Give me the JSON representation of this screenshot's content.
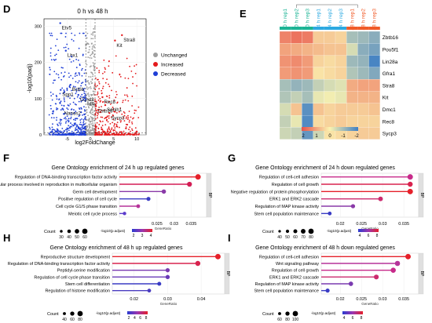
{
  "chart_data": [
    {
      "panel": "D",
      "type": "scatter",
      "title": "0 h vs 48 h",
      "xlabel": "log2FoldChange",
      "ylabel": "-log10(padj)",
      "xticks": [
        "-5",
        "0",
        "5",
        "10"
      ],
      "yticks": [
        "0",
        "100",
        "200",
        "300"
      ],
      "xlim": [
        -10,
        12
      ],
      "ylim": [
        0,
        320
      ],
      "legend": [
        "Unchanged",
        "Increased",
        "Decreased"
      ],
      "legend_colors": [
        "#9e9e9e",
        "#e41a1c",
        "#1f3fd6"
      ],
      "gene_labels": [
        {
          "label": "Etv5",
          "x": -6.5,
          "y": 308
        },
        {
          "label": "Lhx1",
          "x": -5.3,
          "y": 232
        },
        {
          "label": "Bcl6b",
          "x": -4.3,
          "y": 138
        },
        {
          "label": "Spp1",
          "x": -6.4,
          "y": 124
        },
        {
          "label": "Ccnd2",
          "x": -2.6,
          "y": 110
        },
        {
          "label": "Id4",
          "x": -1.0,
          "y": 98
        },
        {
          "label": "Nanos2",
          "x": -6.0,
          "y": 72
        },
        {
          "label": "Kit",
          "x": 5.3,
          "y": 260
        },
        {
          "label": "Stra8",
          "x": 6.8,
          "y": 275
        },
        {
          "label": "Rec8",
          "x": 2.6,
          "y": 104
        },
        {
          "label": "Zbtb16",
          "x": 1.2,
          "y": 79
        },
        {
          "label": "Sohlh1",
          "x": 3.2,
          "y": 82
        },
        {
          "label": "Sycp3",
          "x": 4.1,
          "y": 60
        }
      ]
    },
    {
      "panel": "E",
      "type": "heatmap",
      "columns": [
        "0 h rep1",
        "0 h rep2",
        "0 h rep3",
        "24 h rep1",
        "24 h rep2",
        "24 h rep3",
        "48 h rep1",
        "48 h rep2",
        "48 h rep3"
      ],
      "column_colors": [
        "#1ab394",
        "#1ab394",
        "#1ab394",
        "#2ca9e1",
        "#2ca9e1",
        "#2ca9e1",
        "#f05a28",
        "#f05a28",
        "#f05a28"
      ],
      "rows": [
        "Zbtb16",
        "Pou5f1",
        "Lin28a",
        "Gfra1",
        "Stra8",
        "Kit",
        "Dmc1",
        "Rec8",
        "Sycp3"
      ],
      "values": [
        [
          1.4,
          1.6,
          1.5,
          0.5,
          0.5,
          0.4,
          -0.9,
          -1.0,
          -1.2
        ],
        [
          1.0,
          0.9,
          0.8,
          0.7,
          0.6,
          0.6,
          -0.4,
          -1.2,
          -1.4
        ],
        [
          1.2,
          1.3,
          1.1,
          0.4,
          0.3,
          0.4,
          -1.0,
          -1.1,
          -1.9
        ],
        [
          1.1,
          1.2,
          1.1,
          0.2,
          0.3,
          0.4,
          -0.8,
          -1.0,
          -1.3
        ],
        [
          -0.9,
          -1.1,
          -1.0,
          -0.6,
          -0.4,
          -0.3,
          0.9,
          1.0,
          1.0
        ],
        [
          -0.8,
          -0.6,
          -0.9,
          -0.2,
          -0.1,
          -0.2,
          0.8,
          0.8,
          0.8
        ],
        [
          -0.4,
          0.6,
          -1.7,
          0.6,
          0.4,
          0.5,
          0.5,
          0.5,
          0.6
        ],
        [
          -0.6,
          -0.2,
          -1.8,
          0.3,
          0.4,
          0.5,
          0.4,
          0.4,
          0.4
        ],
        [
          -0.5,
          -0.6,
          -1.6,
          -0.5,
          0.2,
          0.3,
          0.4,
          0.5,
          0.5
        ]
      ],
      "scale_ticks": [
        "2",
        "1",
        "0",
        "-1",
        "-2"
      ]
    },
    {
      "panel": "F",
      "type": "lollipop",
      "title": "Gene Ontology enrichment of 24 h up regulated genes",
      "xlabel": "GeneRatio",
      "xticks": [
        0.025,
        0.03,
        0.035
      ],
      "xlim": [
        0.014,
        0.0395
      ],
      "categories": [
        "Regulation of DNA-binding transcription factor activity",
        "Cellular process involved in reproduction in multicellular organism",
        "Germ cell development",
        "Positive regulation of cell cycle",
        "Cell cycle G1/S phase transition",
        "Meiotic cell cycle process"
      ],
      "values": [
        0.037,
        0.0345,
        0.027,
        0.0225,
        0.0195,
        0.0155
      ],
      "colors": [
        "#e5202a",
        "#d31d55",
        "#8a3aa8",
        "#3a3cc4",
        "#b6349a",
        "#5c3ccc"
      ],
      "sizes": [
        60,
        50,
        40,
        35,
        30,
        25
      ],
      "facet": "BP",
      "count_legend": [
        "30",
        "40",
        "50",
        "60"
      ],
      "color_legend_title": "-log10(p.adjust)",
      "color_legend_ticks": [
        "2",
        "3",
        "4"
      ]
    },
    {
      "panel": "G",
      "type": "lollipop",
      "title": "Gene Ontology enrichment of 24 h down regulated genes",
      "xlabel": "GeneRatio",
      "xticks": [
        0.02,
        0.025,
        0.03,
        0.035
      ],
      "xlim": [
        0.0155,
        0.0385
      ],
      "categories": [
        "Regulation of cell-cell adhesion",
        "Regulation of cell growth",
        "Negative regulation of protein phosphorylation",
        "ERK1 and ERK2 cascade",
        "Regulation of MAP kinase activity",
        "Stem cell population maintenance"
      ],
      "values": [
        0.0365,
        0.0365,
        0.0365,
        0.0295,
        0.023,
        0.0175
      ],
      "colors": [
        "#c72a8a",
        "#d8234e",
        "#e5202a",
        "#cc2a6e",
        "#8a3aa8",
        "#3a3cc4"
      ],
      "sizes": [
        80,
        70,
        80,
        60,
        50,
        40
      ],
      "facet": "BP",
      "count_legend": [
        "40",
        "50",
        "60",
        "70",
        "80"
      ],
      "color_legend_title": "-log10(p.adjust)",
      "color_legend_ticks": [
        "4",
        "6",
        "8"
      ]
    },
    {
      "panel": "H",
      "type": "lollipop",
      "title": "Gene Ontology enrichment of 48 h up regulated genes",
      "xlabel": "GeneRatio",
      "xticks": [
        0.02,
        0.03,
        0.04
      ],
      "xlim": [
        0.0135,
        0.047
      ],
      "categories": [
        "Reproductive structure development",
        "Regulation of DNA-binding transcription factor activity",
        "Peptidyl-serine modification",
        "Regulation of cell cycle phase transition",
        "Stem cell differentiation",
        "Regulation of histone modification"
      ],
      "values": [
        0.045,
        0.039,
        0.03,
        0.03,
        0.0275,
        0.0245
      ],
      "colors": [
        "#e5202a",
        "#d8234e",
        "#7a3ab0",
        "#6a3cb8",
        "#3a3cc4",
        "#4a3cc0"
      ],
      "sizes": [
        80,
        70,
        50,
        50,
        45,
        40
      ],
      "facet": "BP",
      "count_legend": [
        "40",
        "60",
        "80"
      ],
      "color_legend_title": "-log10(p.adjust)",
      "color_legend_ticks": [
        "2",
        "4",
        "6",
        "8"
      ]
    },
    {
      "panel": "I",
      "type": "lollipop",
      "title": "Gene Ontology enrichment of 48 h down regulated genes",
      "xlabel": "GeneRatio",
      "xticks": [
        0.02,
        0.025,
        0.03,
        0.035
      ],
      "xlim": [
        0.0155,
        0.0385
      ],
      "categories": [
        "Regulation of cell-cell adhesion",
        "Wnt signaling pathway",
        "Regulation of cell growth",
        "ERK1 and ERK2 cascade",
        "Regulation of MAP kinase activity",
        "Stem cell population maintenance"
      ],
      "values": [
        0.036,
        0.0335,
        0.0325,
        0.0285,
        0.0225,
        0.017
      ],
      "colors": [
        "#e5202a",
        "#b6349a",
        "#c72a8a",
        "#cc2a6e",
        "#7a3ab0",
        "#3a3cc4"
      ],
      "sizes": [
        100,
        90,
        90,
        80,
        70,
        60
      ],
      "facet": "BP",
      "count_legend": [
        "60",
        "80",
        "100"
      ],
      "color_legend_title": "-log10(p.adjust)",
      "color_legend_ticks": [
        "4",
        "6",
        "8"
      ]
    }
  ],
  "panel_letters": {
    "D": "D",
    "E": "E",
    "F": "F",
    "G": "G",
    "H": "H",
    "I": "I"
  },
  "count_label": "Count",
  "colors": {
    "up": "#e41a1c",
    "down": "#1f3fd6",
    "unchanged": "#9e9e9e",
    "heat_high": "#e8534a",
    "heat_mid": "#fbf3b0",
    "heat_low": "#3f7fc4"
  }
}
